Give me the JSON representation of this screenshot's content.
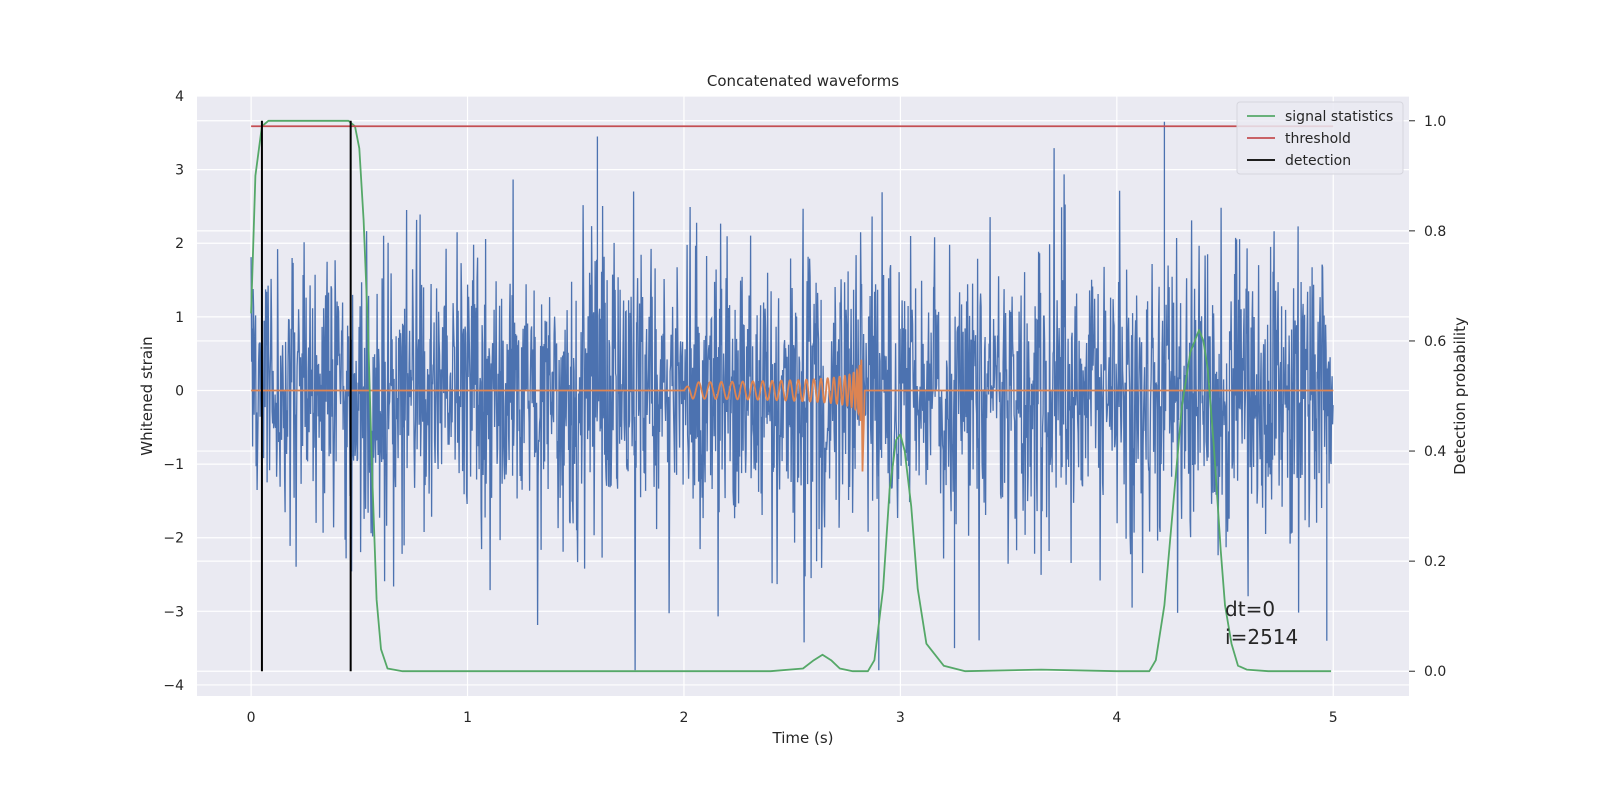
{
  "colors": {
    "background": "#eaeaf2",
    "grid": "#ffffff",
    "strain": "#4c72b0",
    "template": "#dd8452",
    "signal_statistics": "#55a868",
    "threshold": "#c44e52",
    "detection": "#000000"
  },
  "chart_data": {
    "type": "line",
    "title": "Concatenated waveforms",
    "xlabel": "Time (s)",
    "ylabel": "Whitened strain",
    "y2label": "Detection probability",
    "xlim": [
      -0.25,
      5.35
    ],
    "ylim": [
      -4.15,
      4.0
    ],
    "y2lim": [
      -0.045,
      1.045
    ],
    "x_ticks": [
      "0",
      "1",
      "2",
      "3",
      "4",
      "5"
    ],
    "y_ticks": [
      "−4",
      "−3",
      "−2",
      "−1",
      "0",
      "1",
      "2",
      "3",
      "4"
    ],
    "y2_ticks": [
      "0.0",
      "0.2",
      "0.4",
      "0.6",
      "0.8",
      "1.0"
    ],
    "grid": true,
    "legend_position": "top-right",
    "legend": [
      "signal statistics",
      "threshold",
      "detection"
    ],
    "annotation_lines": [
      "dt=0",
      "i=2514"
    ],
    "series": [
      {
        "role": "whitened strain (noise)",
        "axis": "left",
        "kind": "noise",
        "x_range": [
          0,
          5
        ],
        "std": 1.0,
        "range": [
          -3.8,
          3.6
        ],
        "highlights": [
          {
            "x": 1.6,
            "y": 3.45
          },
          {
            "x": 4.22,
            "y": 3.65
          },
          {
            "x": 2.9,
            "y": -3.8
          },
          {
            "x": 4.97,
            "y": -3.4
          },
          {
            "x": 3.25,
            "y": -3.5
          }
        ]
      },
      {
        "role": "signal template",
        "axis": "left",
        "kind": "chirp",
        "x_range": [
          0,
          5
        ],
        "chirp_start": 2.0,
        "chirp_end": 2.82,
        "peak_amplitude": 1.15
      },
      {
        "name": "signal statistics",
        "axis": "right",
        "x": [
          0.0,
          0.02,
          0.05,
          0.08,
          0.12,
          0.2,
          0.3,
          0.4,
          0.45,
          0.48,
          0.5,
          0.52,
          0.54,
          0.56,
          0.58,
          0.6,
          0.63,
          0.7,
          1.0,
          2.0,
          2.4,
          2.55,
          2.6,
          2.64,
          2.68,
          2.72,
          2.78,
          2.85,
          2.88,
          2.92,
          2.95,
          2.98,
          3.0,
          3.02,
          3.05,
          3.08,
          3.12,
          3.2,
          3.3,
          3.65,
          4.0,
          4.15,
          4.18,
          4.22,
          4.26,
          4.3,
          4.34,
          4.38,
          4.4,
          4.42,
          4.45,
          4.48,
          4.5,
          4.53,
          4.56,
          4.6,
          4.7,
          4.99
        ],
        "y": [
          0.65,
          0.9,
          0.99,
          1.0,
          1.0,
          1.0,
          1.0,
          1.0,
          1.0,
          0.99,
          0.95,
          0.82,
          0.62,
          0.35,
          0.13,
          0.04,
          0.005,
          0.0,
          0.0,
          0.0,
          0.0,
          0.005,
          0.02,
          0.03,
          0.02,
          0.005,
          0.0,
          0.0,
          0.02,
          0.15,
          0.33,
          0.42,
          0.43,
          0.4,
          0.3,
          0.15,
          0.05,
          0.01,
          0.0,
          0.003,
          0.0,
          0.0,
          0.02,
          0.12,
          0.3,
          0.48,
          0.58,
          0.62,
          0.6,
          0.55,
          0.4,
          0.22,
          0.12,
          0.05,
          0.01,
          0.003,
          0.0,
          0.0
        ]
      },
      {
        "name": "threshold",
        "axis": "right",
        "x": [
          0,
          5
        ],
        "y": [
          0.99,
          0.99
        ]
      },
      {
        "name": "detection",
        "axis": "right",
        "kind": "vertical",
        "x": [
          0.05,
          0.46
        ],
        "y_range": [
          0,
          1
        ]
      }
    ]
  }
}
